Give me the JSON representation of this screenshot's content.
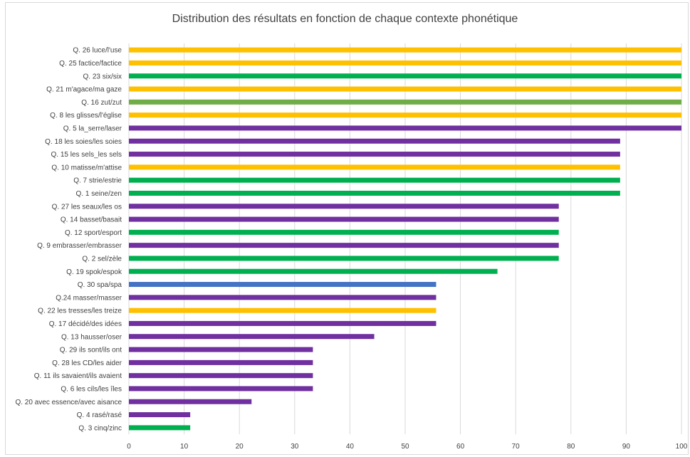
{
  "chart_data": {
    "type": "bar",
    "orientation": "horizontal",
    "title": "Distribution des résultats en fonction de chaque contexte phonétique",
    "xlim": [
      0,
      100
    ],
    "xticks": [
      "0",
      "10",
      "20",
      "30",
      "40",
      "50",
      "60",
      "70",
      "80",
      "90",
      "100"
    ],
    "grid": true,
    "colors": {
      "yellow": "#ffc000",
      "green": "#00b050",
      "olive": "#70ad47",
      "purple": "#7030a0",
      "blue": "#4472c4"
    },
    "bars": [
      {
        "label": "Q. 26 luce/l'use",
        "value": 100,
        "color": "#ffc000"
      },
      {
        "label": "Q. 25 factice/factice",
        "value": 100,
        "color": "#ffc000"
      },
      {
        "label": "Q. 23 six/six",
        "value": 100,
        "color": "#00b050"
      },
      {
        "label": "Q. 21 m'agace/ma gaze",
        "value": 100,
        "color": "#ffc000"
      },
      {
        "label": "Q. 16 zut/zut",
        "value": 100,
        "color": "#70ad47"
      },
      {
        "label": "Q. 8 les glisses/l'église",
        "value": 100,
        "color": "#ffc000"
      },
      {
        "label": "Q. 5 la_serre/laser",
        "value": 100,
        "color": "#7030a0"
      },
      {
        "label": "Q. 18 les soies/les soies",
        "value": 88.9,
        "color": "#7030a0"
      },
      {
        "label": "Q. 15 les sels_les sels",
        "value": 88.9,
        "color": "#7030a0"
      },
      {
        "label": "Q. 10 matisse/m'attise",
        "value": 88.9,
        "color": "#ffc000"
      },
      {
        "label": "Q. 7 strie/estrie",
        "value": 88.9,
        "color": "#00b050"
      },
      {
        "label": "Q. 1 seine/zen",
        "value": 88.9,
        "color": "#00b050"
      },
      {
        "label": "Q. 27 les seaux/les os",
        "value": 77.8,
        "color": "#7030a0"
      },
      {
        "label": "Q. 14 basset/basait",
        "value": 77.8,
        "color": "#7030a0"
      },
      {
        "label": "Q. 12 sport/esport",
        "value": 77.8,
        "color": "#00b050"
      },
      {
        "label": "Q. 9 embrasser/embrasser",
        "value": 77.8,
        "color": "#7030a0"
      },
      {
        "label": "Q. 2 sel/zèle",
        "value": 77.8,
        "color": "#00b050"
      },
      {
        "label": "Q. 19 spok/espok",
        "value": 66.7,
        "color": "#00b050"
      },
      {
        "label": "Q. 30 spa/spa",
        "value": 55.6,
        "color": "#4472c4"
      },
      {
        "label": "Q.24 masser/masser",
        "value": 55.6,
        "color": "#7030a0"
      },
      {
        "label": "Q. 22 les tresses/les treize",
        "value": 55.6,
        "color": "#ffc000"
      },
      {
        "label": "Q. 17 décidé/des idées",
        "value": 55.6,
        "color": "#7030a0"
      },
      {
        "label": "Q. 13 hausser/oser",
        "value": 44.4,
        "color": "#7030a0"
      },
      {
        "label": "Q. 29 ils sont/ils ont",
        "value": 33.3,
        "color": "#7030a0"
      },
      {
        "label": "Q. 28 les CD/les aider",
        "value": 33.3,
        "color": "#7030a0"
      },
      {
        "label": "Q. 11 ils savaient/ils avaient",
        "value": 33.3,
        "color": "#7030a0"
      },
      {
        "label": "Q. 6  les cils/les îles",
        "value": 33.3,
        "color": "#7030a0"
      },
      {
        "label": "Q. 20  avec essence/avec aisance",
        "value": 22.2,
        "color": "#7030a0"
      },
      {
        "label": "Q. 4 rasé/rasé",
        "value": 11.1,
        "color": "#7030a0"
      },
      {
        "label": "Q. 3 cinq/zinc",
        "value": 11.1,
        "color": "#00b050"
      }
    ]
  }
}
